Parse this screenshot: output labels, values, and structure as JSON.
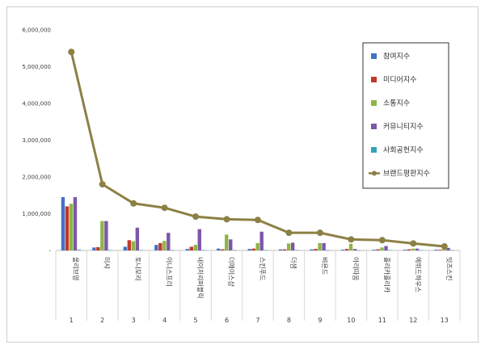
{
  "chart_data": {
    "type": "bar",
    "ylim": [
      0,
      6000000
    ],
    "yticks": [
      "-",
      "1,000,000",
      "2,000,000",
      "3,000,000",
      "4,000,000",
      "5,000,000",
      "6,000,000"
    ],
    "grid": false,
    "legend_position": "top-right",
    "categories": [
      "올리브영",
      "미샤",
      "토니모리",
      "이니스프리",
      "네이처리퍼블릭",
      "더페이스샵",
      "스킨푸드",
      "더샘",
      "비욘드",
      "아리따움",
      "홀리카홀리카",
      "에뛰드하우스",
      "잇츠스킨"
    ],
    "ranks": [
      "1",
      "2",
      "3",
      "4",
      "5",
      "6",
      "7",
      "8",
      "9",
      "10",
      "11",
      "12",
      "13"
    ],
    "series": [
      {
        "name": "참여지수",
        "kind": "bar",
        "color": "#4472C4",
        "values": [
          1450000,
          80000,
          100000,
          150000,
          40000,
          50000,
          40000,
          30000,
          30000,
          20000,
          20000,
          20000,
          20000
        ]
      },
      {
        "name": "미디어지수",
        "kind": "bar",
        "color": "#C0392B",
        "values": [
          1200000,
          90000,
          280000,
          200000,
          100000,
          30000,
          50000,
          30000,
          40000,
          40000,
          30000,
          30000,
          20000
        ]
      },
      {
        "name": "소통지수",
        "kind": "bar",
        "color": "#8DB544",
        "values": [
          1270000,
          800000,
          250000,
          260000,
          150000,
          430000,
          200000,
          190000,
          200000,
          180000,
          80000,
          50000,
          40000
        ]
      },
      {
        "name": "커뮤니티지수",
        "kind": "bar",
        "color": "#7E57A8",
        "values": [
          1450000,
          800000,
          620000,
          480000,
          580000,
          300000,
          510000,
          210000,
          200000,
          40000,
          120000,
          50000,
          70000
        ]
      },
      {
        "name": "사회공헌지수",
        "kind": "bar",
        "color": "#33A5B8",
        "values": [
          20000,
          10000,
          10000,
          10000,
          10000,
          10000,
          10000,
          10000,
          10000,
          10000,
          10000,
          10000,
          10000
        ]
      },
      {
        "name": "브랜드평판지수",
        "kind": "line",
        "color": "#8C8045",
        "values": [
          5400000,
          1800000,
          1280000,
          1160000,
          920000,
          850000,
          830000,
          480000,
          480000,
          300000,
          280000,
          190000,
          110000
        ]
      }
    ]
  }
}
